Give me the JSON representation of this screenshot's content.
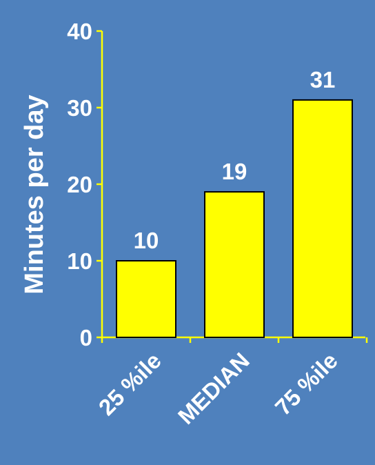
{
  "chart_data": {
    "type": "bar",
    "categories": [
      "25 %ile",
      "MEDIAN",
      "75 %ile"
    ],
    "values": [
      10,
      19,
      31
    ],
    "data_labels": [
      "10",
      "19",
      "31"
    ],
    "ylabel": "Minutes per day",
    "ylim": [
      0,
      40
    ],
    "yticks": [
      0,
      10,
      20,
      30,
      40
    ],
    "ytick_labels": [
      "0",
      "10",
      "20",
      "30",
      "40"
    ],
    "grid": false,
    "legend": "none"
  },
  "colors": {
    "background": "#4f81bd",
    "bar_fill": "#ffff00",
    "bar_stroke": "#000000",
    "axis": "#ffff00",
    "text": "#ffffff"
  }
}
